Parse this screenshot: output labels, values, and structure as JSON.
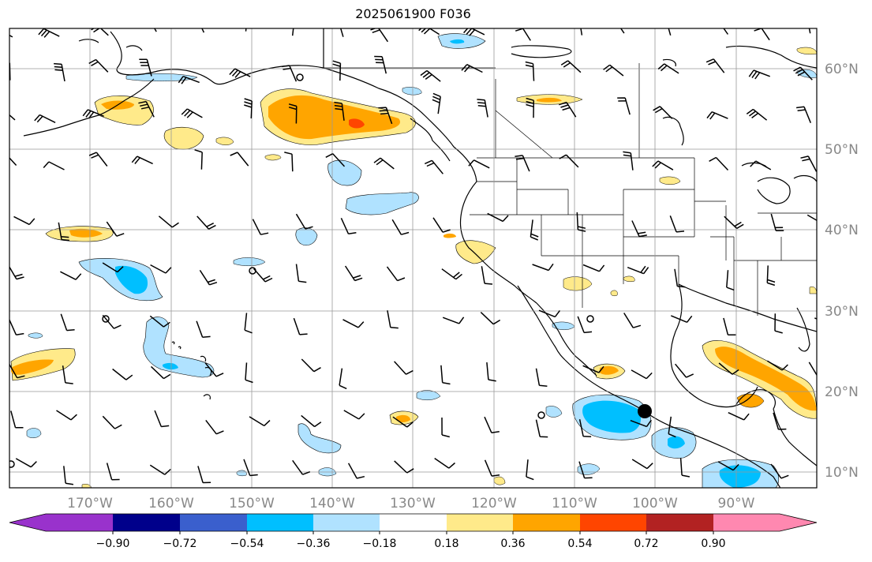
{
  "title": "2025061900 F036",
  "lon_labels": [
    "170°W",
    "160°W",
    "150°W",
    "140°W",
    "130°W",
    "120°W",
    "110°W",
    "100°W",
    "90°W"
  ],
  "lat_labels": [
    "60°N",
    "50°N",
    "40°N",
    "30°N",
    "20°N",
    "10°N"
  ],
  "colorbar": {
    "colors": [
      "#9932cc",
      "#00008b",
      "#3a5fcd",
      "#00bfff",
      "#b0e2ff",
      "#ffffff",
      "#ffea8a",
      "#ffa500",
      "#ff4500",
      "#b22222",
      "#ff88b0"
    ],
    "tick_labels": [
      "−0.90",
      "−0.72",
      "−0.54",
      "−0.36",
      "−0.18",
      "0.18",
      "0.36",
      "0.54",
      "0.72",
      "0.90"
    ]
  },
  "marker": {
    "description": "storm position",
    "lon": -101.8,
    "lat": 17.2
  },
  "colors": {
    "frame": "#000000",
    "grid": "#999999",
    "coast": "#000000"
  }
}
